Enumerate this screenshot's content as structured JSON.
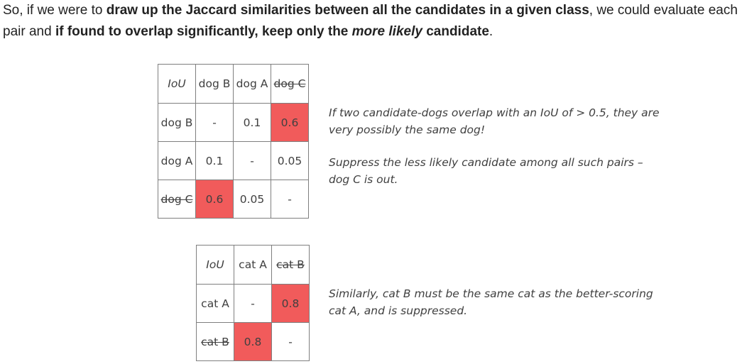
{
  "intro": {
    "t1": "So, if we were to ",
    "b1": "draw up the Jaccard similarities between all the candidates in a given class",
    "t2": ", we could evaluate each pair and ",
    "b2": "if found to overlap significantly, keep only the ",
    "b3": "more likely",
    "b4": " candidate",
    "t3": "."
  },
  "dog_table": {
    "corner": "IoU",
    "headers": [
      "dog B",
      "dog A",
      "dog C"
    ],
    "rows": [
      {
        "label": "dog B",
        "cells": [
          "-",
          "0.1",
          "0.6"
        ]
      },
      {
        "label": "dog A",
        "cells": [
          "0.1",
          "-",
          "0.05"
        ]
      },
      {
        "label": "dog C",
        "cells": [
          "0.6",
          "0.05",
          "-"
        ]
      }
    ]
  },
  "cat_table": {
    "corner": "IoU",
    "headers": [
      "cat A",
      "cat B"
    ],
    "rows": [
      {
        "label": "cat A",
        "cells": [
          "-",
          "0.8"
        ]
      },
      {
        "label": "cat B",
        "cells": [
          "0.8",
          "-"
        ]
      }
    ]
  },
  "notes": {
    "note1": "If two candidate-dogs overlap with an IoU of > 0.5, they are very possibly the same dog!",
    "note2": "Suppress the less likely candidate among all such pairs – dog C is out.",
    "note3": "Similarly, cat B must be the same cat as the better-scoring cat A, and is suppressed."
  },
  "colors": {
    "highlight": "#f15b5b",
    "border": "#7f7f7f"
  }
}
